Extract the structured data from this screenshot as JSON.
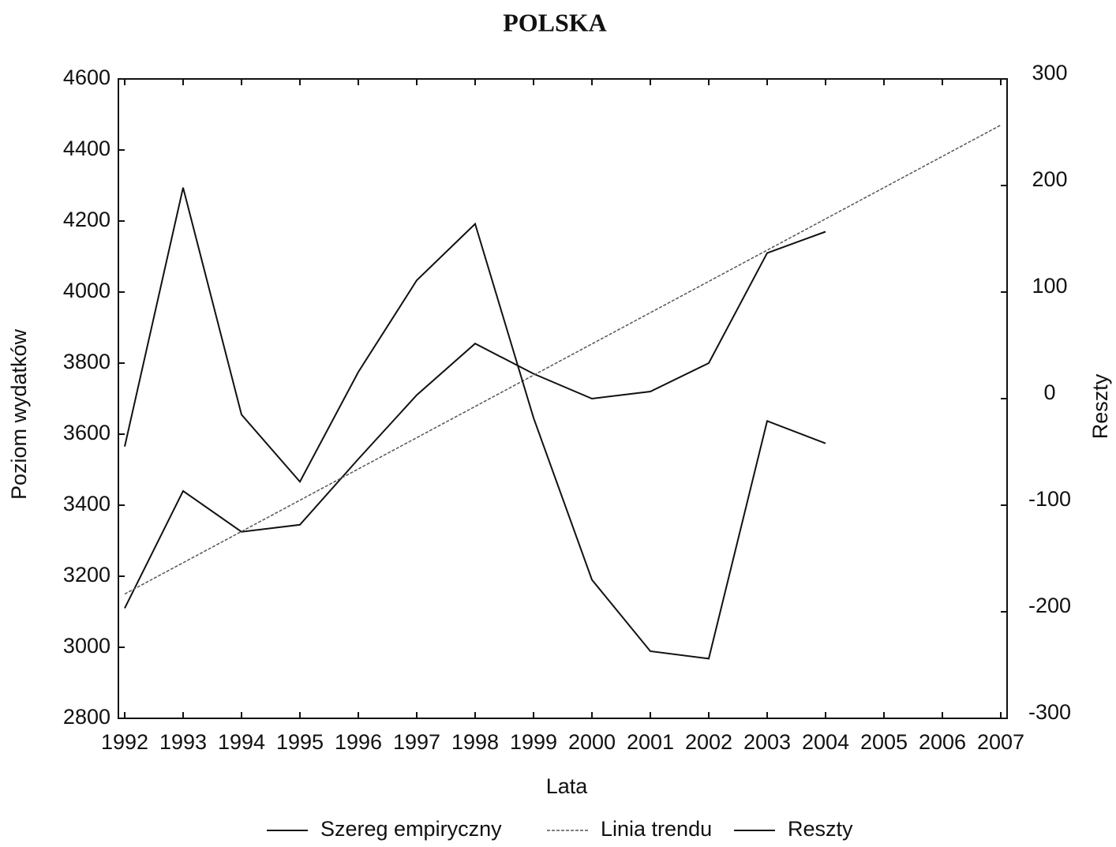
{
  "chart_data": {
    "type": "line",
    "title": "POLSKA",
    "x_label": "Lata",
    "y_label": "Poziom wydatków",
    "y2_label": "Reszty",
    "x": [
      1992,
      1993,
      1994,
      1995,
      1996,
      1997,
      1998,
      1999,
      2000,
      2001,
      2002,
      2003,
      2004,
      2005,
      2006,
      2007
    ],
    "xlim": [
      1992,
      2007
    ],
    "xticks": [
      1992,
      1993,
      1994,
      1995,
      1996,
      1997,
      1998,
      1999,
      2000,
      2001,
      2002,
      2003,
      2004,
      2005,
      2006,
      2007
    ],
    "ylim": [
      2800,
      4600
    ],
    "yticks": [
      2800,
      3000,
      3200,
      3400,
      3600,
      3800,
      4000,
      4200,
      4400,
      4600
    ],
    "y2lim": [
      -300,
      300
    ],
    "y2ticks": [
      -300,
      -200,
      -100,
      0,
      100,
      200,
      300
    ],
    "series": [
      {
        "name": "Szereg empiryczny",
        "color": "#111111",
        "dash": false,
        "values": [
          3110,
          3440,
          3325,
          3345,
          3530,
          3710,
          3855,
          3770,
          3700,
          3720,
          3800,
          4110,
          4170,
          null,
          null,
          null
        ]
      },
      {
        "name": "Linia trendu",
        "color": "#555555",
        "dash": true,
        "values": [
          3150,
          3238,
          3326,
          3414,
          3502,
          3590,
          3678,
          3766,
          3854,
          3942,
          4030,
          4118,
          4206,
          4294,
          4382,
          4470
        ]
      },
      {
        "name": "Reszty",
        "color": "#111111",
        "dash": false,
        "axis": "y2",
        "values": [
          -45,
          198,
          -15,
          -78,
          25,
          111,
          164,
          -18,
          -170,
          -237,
          -244,
          -21,
          -42,
          null,
          null,
          null
        ]
      }
    ]
  }
}
